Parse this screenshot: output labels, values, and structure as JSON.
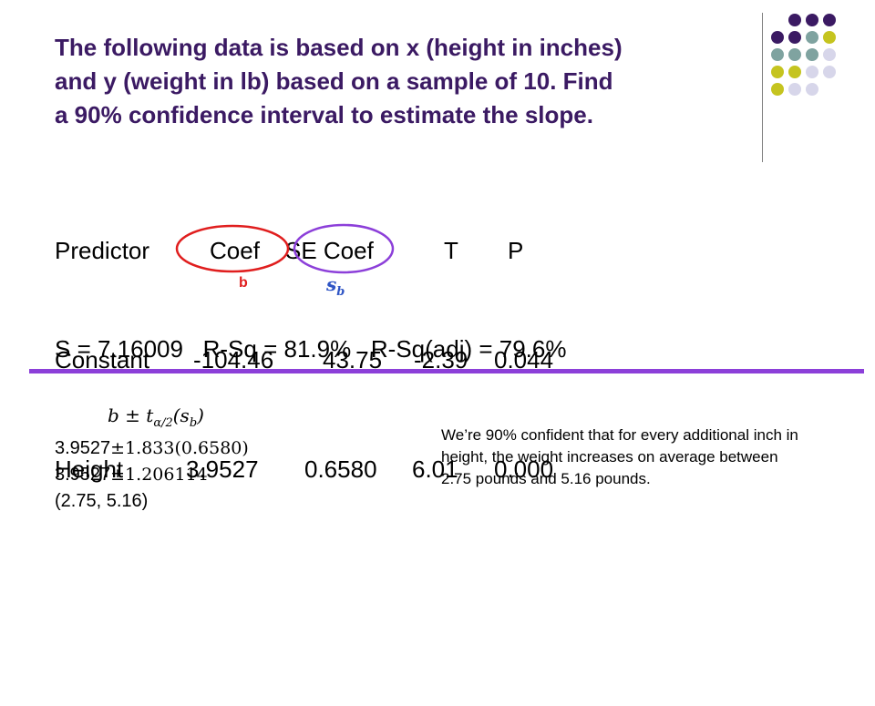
{
  "title_lines": [
    "The following data is based on x (height in inches)",
    "and y (weight in lb) based on a sample of 10.  Find",
    "a 90% confidence interval to estimate the slope."
  ],
  "regression": {
    "headers": [
      "Predictor",
      "Coef",
      "SE Coef",
      "T",
      "P"
    ],
    "rows": [
      [
        "Constant",
        "-104.46",
        "43.75",
        "-2.39",
        "0.044"
      ],
      [
        "Height",
        "3.9527",
        "0.6580",
        "6.01",
        "0.000"
      ]
    ]
  },
  "annotations": {
    "b_label": "b",
    "sb_label": "s",
    "sb_sub": "b"
  },
  "stats_line": "S = 7.16009   R-Sq = 81.9%   R-Sq(adj) = 79.6%",
  "formula": {
    "prefix": "b ± t",
    "sub": "α/2",
    "suffix": "(s",
    "suffix_sub": "b",
    "close": ")"
  },
  "calc": [
    {
      "num": "3.9527",
      "rest": "±1.833(0.6580)"
    },
    {
      "num": "3.9527",
      "rest": "±1.206114"
    },
    {
      "num": "(2.75, 5.16)",
      "rest": ""
    }
  ],
  "conclusion": "We’re 90% confident that for every additional inch in height, the weight increases on average between 2.75 pounds and 5.16 pounds.",
  "colors": {
    "title": "#3b1a63",
    "divider": "#8c3fd9",
    "circle_b": "#e01e1e",
    "circle_sb": "#8c3fd9",
    "dot_purple": "#3b1a63",
    "dot_teal": "#7fa3a0",
    "dot_yellow": "#c5c41f",
    "dot_lavender": "#d7d6ea"
  }
}
